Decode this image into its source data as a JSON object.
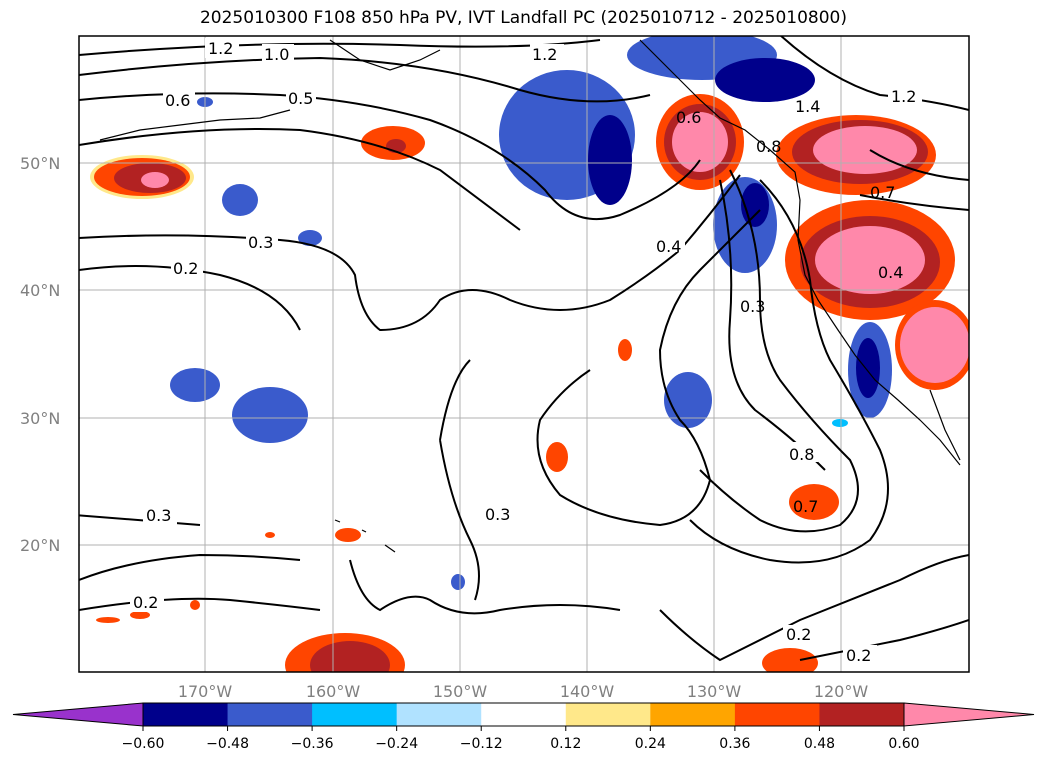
{
  "title": "2025010300 F108 850 hPa PV, IVT Landfall PC (2025010712 - 2025010800)",
  "map": {
    "lon_range": [
      -180,
      -110
    ],
    "lat_range": [
      10,
      60
    ],
    "lon_ticks": [
      "170°W",
      "160°W",
      "150°W",
      "140°W",
      "130°W",
      "120°W"
    ],
    "lat_ticks": [
      "50°N",
      "40°N",
      "30°N",
      "20°N"
    ],
    "gridlines": true,
    "contour_labels": [
      "1.2",
      "1.0",
      "1.2",
      "0.6",
      "0.5",
      "0.6",
      "1.4",
      "1.2",
      "0.8",
      "0.7",
      "0.4",
      "0.3",
      "0.2",
      "0.4",
      "0.3",
      "0.8",
      "0.7",
      "0.3",
      "0.3",
      "0.2",
      "0.2",
      "0.2"
    ]
  },
  "colorbar": {
    "ticks": [
      "−0.60",
      "−0.48",
      "−0.36",
      "−0.24",
      "−0.12",
      "0.12",
      "0.24",
      "0.36",
      "0.48",
      "0.60"
    ],
    "colors": [
      "#9932cc",
      "#00008b",
      "#3a5bcc",
      "#00bfff",
      "#b0e2ff",
      "#ffffff",
      "#ffe88a",
      "#ffa500",
      "#ff4500",
      "#b22222",
      "#ff88aa"
    ],
    "extend": "both"
  }
}
